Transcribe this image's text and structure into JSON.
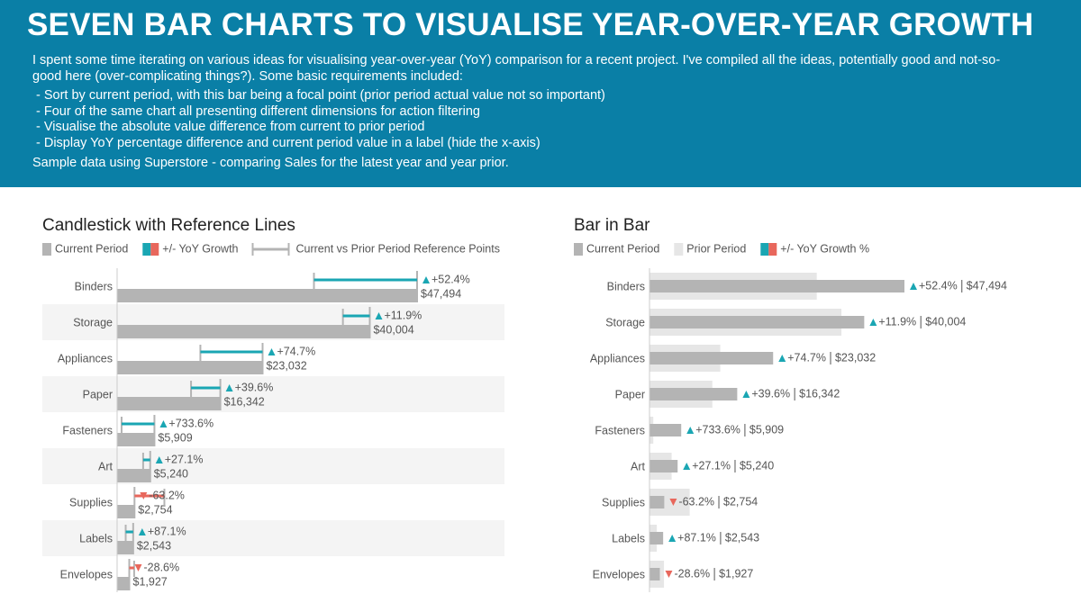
{
  "header": {
    "title": "SEVEN BAR CHARTS TO VISUALISE YEAR-OVER-YEAR GROWTH",
    "intro": "I spent some time iterating on various ideas for visualising year-over-year (YoY) comparison for a recent project. I've compiled all the ideas, potentially good and not-so-good here (over-complicating things?). Some basic requirements included:",
    "requirements": [
      "- Sort by current period, with this bar being a focal point (prior period actual value not so important)",
      "- Four of the same chart all presenting different dimensions for action filtering",
      "- Visualise the absolute value difference from current to prior period",
      "- Display YoY percentage difference and current period value in a label (hide the x-axis)"
    ],
    "note": "Sample data using Superstore - comparing Sales for the latest year and year prior."
  },
  "chart_data": [
    {
      "type": "candlestick",
      "title": "Candlestick with Reference Lines",
      "categories": [
        "Binders",
        "Storage",
        "Appliances",
        "Paper",
        "Fasteners",
        "Art",
        "Supplies",
        "Labels",
        "Envelopes"
      ],
      "series": [
        {
          "name": "Current Period",
          "color": "#b4b4b4",
          "values": [
            47494,
            40004,
            23032,
            16342,
            5909,
            5240,
            2754,
            2543,
            1927
          ],
          "value_labels": [
            "$47,494",
            "$40,004",
            "$23,032",
            "$16,342",
            "$5,909",
            "$5,240",
            "$2,754",
            "$2,543",
            "$1,927"
          ]
        },
        {
          "name": "+/- YoY Growth",
          "color": "#1aa6b3",
          "negative_color": "#e8675c",
          "values": [
            52.4,
            11.9,
            74.7,
            39.6,
            733.6,
            27.1,
            -63.2,
            87.1,
            -28.6
          ],
          "value_labels": [
            "+52.4%",
            "+11.9%",
            "+74.7%",
            "+39.6%",
            "+733.6%",
            "+27.1%",
            "-63.2%",
            "+87.1%",
            "-28.6%"
          ]
        },
        {
          "name": "Current vs Prior Period Reference Points",
          "color": "#b4b4b4",
          "values": [
            31164,
            35750,
            13184,
            11706,
            709,
            4123,
            7484,
            1359,
            2699
          ]
        }
      ],
      "band_color": "#f4f4f4"
    },
    {
      "type": "bar",
      "title": "Bar in Bar",
      "categories": [
        "Binders",
        "Storage",
        "Appliances",
        "Paper",
        "Fasteners",
        "Art",
        "Supplies",
        "Labels",
        "Envelopes"
      ],
      "series": [
        {
          "name": "Current Period",
          "color": "#b4b4b4",
          "values": [
            47494,
            40004,
            23032,
            16342,
            5909,
            5240,
            2754,
            2543,
            1927
          ],
          "value_labels": [
            "$47,494",
            "$40,004",
            "$23,032",
            "$16,342",
            "$5,909",
            "$5,240",
            "$2,754",
            "$2,543",
            "$1,927"
          ]
        },
        {
          "name": "Prior Period",
          "color": "#e6e6e6",
          "values": [
            31164,
            35750,
            13184,
            11706,
            709,
            4123,
            7484,
            1359,
            2699
          ]
        },
        {
          "name": "+/- YoY Growth %",
          "color": "#1aa6b3",
          "negative_color": "#e8675c",
          "values": [
            52.4,
            11.9,
            74.7,
            39.6,
            733.6,
            27.1,
            -63.2,
            87.1,
            -28.6
          ],
          "value_labels": [
            "+52.4%",
            "+11.9%",
            "+74.7%",
            "+39.6%",
            "+733.6%",
            "+27.1%",
            "-63.2%",
            "+87.1%",
            "-28.6%"
          ]
        }
      ]
    }
  ]
}
